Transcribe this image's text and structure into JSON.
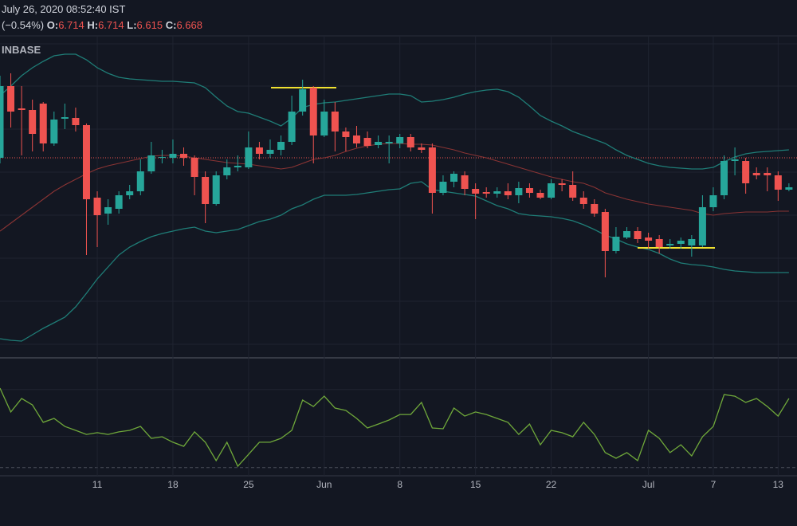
{
  "chart_data": {
    "type": "candlestick",
    "info": {
      "datetime": "July 26, 2020 08:52:40 IST",
      "change": "(−0.54%)",
      "ohlc": [
        {
          "key": "O:",
          "value": 6.714
        },
        {
          "key": "H:",
          "value": 6.714
        },
        {
          "key": "L:",
          "value": 6.615
        },
        {
          "key": "C:",
          "value": 6.668
        }
      ],
      "exchange": "INBASE"
    },
    "categories": [
      null,
      null,
      null,
      null,
      null,
      null,
      null,
      null,
      null,
      "11",
      null,
      null,
      null,
      null,
      null,
      null,
      "18",
      null,
      null,
      null,
      null,
      null,
      null,
      "25",
      null,
      null,
      null,
      null,
      null,
      null,
      "Jun",
      null,
      null,
      null,
      null,
      null,
      null,
      "8",
      null,
      null,
      null,
      null,
      null,
      null,
      "15",
      null,
      null,
      null,
      null,
      null,
      null,
      "22",
      null,
      null,
      null,
      null,
      null,
      null,
      null,
      null,
      "Jul",
      null,
      null,
      null,
      null,
      null,
      "7",
      null,
      null,
      null,
      null,
      null,
      "13",
      null
    ],
    "open": [
      6.67,
      7.57,
      7.29,
      7.27,
      7.35,
      6.85,
      7.16,
      7.17,
      7.08,
      6.17,
      5.97,
      6.03,
      6.2,
      6.25,
      6.5,
      6.67,
      6.67,
      6.72,
      6.67,
      6.43,
      6.09,
      6.45,
      6.55,
      6.55,
      6.8,
      6.72,
      6.77,
      6.87,
      7.25,
      7.55,
      6.95,
      7.25,
      7.0,
      6.95,
      6.92,
      6.83,
      6.85,
      6.85,
      6.93,
      6.8,
      6.8,
      6.23,
      6.37,
      6.45,
      6.28,
      6.24,
      6.22,
      6.25,
      6.2,
      6.29,
      6.23,
      6.17,
      6.35,
      6.33,
      6.17,
      6.09,
      5.99,
      5.5,
      5.67,
      5.75,
      5.67,
      5.65,
      5.57,
      5.59,
      5.57,
      5.57,
      6.05,
      6.2,
      6.63,
      6.63,
      6.48,
      6.48,
      6.45,
      6.27
    ],
    "high": [
      7.7,
      7.73,
      7.57,
      7.4,
      7.37,
      7.25,
      7.35,
      7.3,
      7.1,
      6.25,
      6.15,
      6.25,
      6.33,
      6.65,
      6.87,
      6.77,
      6.9,
      6.8,
      6.7,
      6.5,
      6.5,
      6.65,
      6.7,
      7.0,
      6.87,
      6.9,
      6.95,
      7.45,
      7.65,
      7.57,
      7.4,
      7.37,
      7.05,
      7.07,
      7.0,
      6.95,
      6.95,
      6.97,
      6.97,
      6.85,
      6.85,
      6.45,
      6.5,
      6.5,
      6.35,
      6.3,
      6.3,
      6.35,
      6.37,
      6.35,
      6.27,
      6.4,
      6.4,
      6.5,
      6.25,
      6.15,
      6.03,
      5.8,
      5.8,
      5.8,
      5.73,
      5.7,
      5.65,
      5.67,
      5.7,
      6.2,
      6.3,
      6.7,
      6.8,
      6.67,
      6.55,
      6.55,
      6.5,
      6.35
    ],
    "low": [
      6.6,
      7.05,
      6.7,
      6.75,
      6.75,
      6.82,
      7.03,
      7.0,
      5.45,
      5.55,
      5.83,
      5.97,
      6.15,
      6.2,
      6.47,
      6.6,
      6.6,
      6.57,
      6.2,
      5.85,
      6.07,
      6.4,
      6.5,
      6.53,
      6.65,
      6.67,
      6.7,
      6.83,
      7.2,
      6.6,
      6.93,
      6.75,
      6.75,
      6.8,
      6.79,
      6.79,
      6.6,
      6.79,
      6.75,
      6.73,
      5.97,
      6.2,
      6.3,
      6.2,
      5.9,
      6.17,
      6.17,
      6.15,
      6.1,
      6.17,
      6.15,
      6.15,
      6.25,
      6.13,
      6.03,
      5.93,
      5.17,
      5.47,
      5.65,
      5.6,
      5.53,
      5.47,
      5.53,
      5.53,
      5.43,
      5.55,
      6.0,
      6.15,
      6.45,
      6.22,
      6.4,
      6.25,
      6.13,
      6.25
    ],
    "close": [
      7.57,
      7.25,
      7.27,
      6.97,
      6.85,
      7.15,
      7.18,
      7.08,
      6.15,
      5.95,
      6.05,
      6.2,
      6.25,
      6.5,
      6.7,
      6.68,
      6.72,
      6.67,
      6.43,
      6.09,
      6.45,
      6.55,
      6.57,
      6.8,
      6.72,
      6.77,
      6.87,
      7.25,
      7.53,
      6.95,
      7.25,
      7.0,
      6.93,
      6.85,
      6.82,
      6.87,
      6.87,
      6.93,
      6.8,
      6.77,
      6.23,
      6.37,
      6.47,
      6.28,
      6.22,
      6.22,
      6.25,
      6.2,
      6.29,
      6.23,
      6.17,
      6.35,
      6.33,
      6.17,
      6.09,
      5.97,
      5.5,
      5.68,
      5.75,
      5.65,
      5.63,
      5.55,
      5.59,
      5.63,
      5.65,
      6.05,
      6.2,
      6.63,
      6.65,
      6.35,
      6.45,
      6.45,
      6.27,
      6.3
    ],
    "up_color": "#26a69a",
    "down_color": "#ef5350",
    "bands": {
      "upper": [
        7.45,
        7.57,
        7.7,
        7.8,
        7.88,
        7.95,
        7.97,
        7.97,
        7.9,
        7.8,
        7.73,
        7.68,
        7.66,
        7.65,
        7.64,
        7.63,
        7.63,
        7.62,
        7.61,
        7.55,
        7.43,
        7.32,
        7.25,
        7.23,
        7.18,
        7.13,
        7.07,
        7.17,
        7.3,
        7.34,
        7.36,
        7.37,
        7.39,
        7.41,
        7.43,
        7.45,
        7.47,
        7.47,
        7.45,
        7.37,
        7.38,
        7.4,
        7.43,
        7.47,
        7.5,
        7.52,
        7.53,
        7.5,
        7.43,
        7.32,
        7.2,
        7.13,
        7.07,
        7.0,
        6.95,
        6.9,
        6.85,
        6.77,
        6.7,
        6.65,
        6.6,
        6.57,
        6.55,
        6.54,
        6.53,
        6.53,
        6.55,
        6.62,
        6.68,
        6.72,
        6.74,
        6.75,
        6.76,
        6.77
      ],
      "middle": [
        5.75,
        5.85,
        5.95,
        6.05,
        6.15,
        6.25,
        6.33,
        6.4,
        6.47,
        6.53,
        6.57,
        6.6,
        6.63,
        6.66,
        6.69,
        6.7,
        6.7,
        6.69,
        6.67,
        6.65,
        6.63,
        6.61,
        6.6,
        6.59,
        6.57,
        6.55,
        6.53,
        6.55,
        6.6,
        6.65,
        6.67,
        6.7,
        6.75,
        6.79,
        6.82,
        6.84,
        6.85,
        6.85,
        6.84,
        6.84,
        6.83,
        6.8,
        6.77,
        6.73,
        6.7,
        6.67,
        6.63,
        6.59,
        6.55,
        6.51,
        6.47,
        6.43,
        6.4,
        6.37,
        6.35,
        6.3,
        6.23,
        6.19,
        6.15,
        6.12,
        6.09,
        6.07,
        6.05,
        6.03,
        6.01,
        5.97,
        5.95,
        5.97,
        5.98,
        5.99,
        5.99,
        5.99,
        6.0,
        6.0
      ],
      "lower": [
        4.4,
        4.38,
        4.37,
        4.45,
        4.53,
        4.6,
        4.67,
        4.8,
        4.97,
        5.15,
        5.3,
        5.45,
        5.55,
        5.62,
        5.68,
        5.72,
        5.75,
        5.78,
        5.8,
        5.75,
        5.73,
        5.75,
        5.77,
        5.82,
        5.87,
        5.9,
        5.95,
        6.03,
        6.08,
        6.15,
        6.2,
        6.2,
        6.2,
        6.21,
        6.23,
        6.25,
        6.27,
        6.28,
        6.35,
        6.37,
        6.27,
        6.25,
        6.23,
        6.21,
        6.19,
        6.13,
        6.07,
        6.03,
        5.97,
        5.95,
        5.94,
        5.93,
        5.91,
        5.88,
        5.83,
        5.77,
        5.7,
        5.65,
        5.59,
        5.55,
        5.52,
        5.47,
        5.4,
        5.35,
        5.33,
        5.32,
        5.3,
        5.27,
        5.25,
        5.24,
        5.23,
        5.23,
        5.23,
        5.23
      ],
      "band_color": "#1f7d77",
      "middle_color": "#8a3434"
    },
    "price_line": 6.67,
    "price_line_color": "#ef5350",
    "ylim": [
      4.17,
      8.2
    ],
    "ygrid": [
      8.1,
      7.57,
      7.03,
      6.49,
      5.95,
      5.41,
      4.87,
      4.33
    ],
    "oscillator": {
      "values": [
        70.7,
        58.5,
        65.4,
        62.1,
        53.2,
        55.2,
        51.1,
        49.1,
        47.0,
        47.9,
        47.0,
        48.3,
        49.1,
        51.1,
        45.0,
        45.8,
        43.0,
        40.9,
        48.3,
        43.0,
        33.6,
        43.0,
        30.7,
        36.8,
        43.0,
        43.0,
        45.0,
        49.1,
        64.6,
        61.3,
        66.6,
        60.5,
        59.3,
        55.2,
        50.3,
        52.3,
        54.4,
        57.2,
        57.2,
        63.4,
        50.3,
        49.9,
        60.5,
        56.4,
        58.5,
        57.2,
        55.2,
        53.2,
        47.0,
        52.3,
        41.7,
        49.1,
        47.9,
        45.8,
        53.2,
        47.0,
        37.7,
        34.8,
        37.7,
        33.6,
        49.1,
        45.0,
        37.7,
        41.7,
        36.0,
        45.8,
        51.1,
        67.4,
        66.6,
        63.4,
        65.4,
        61.3,
        56.4,
        65.4
      ],
      "color": "#6fa83a",
      "ylim": [
        25,
        85
      ],
      "levels": [
        30,
        46,
        70
      ]
    }
  }
}
